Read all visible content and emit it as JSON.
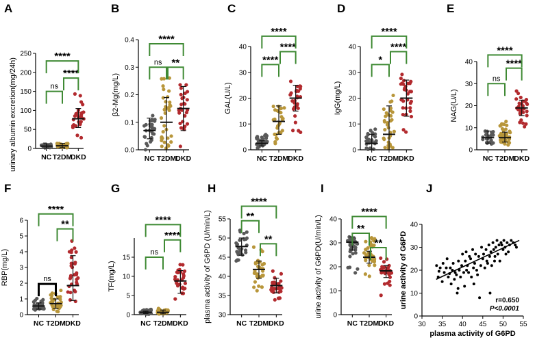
{
  "colors": {
    "NC": "#595959",
    "T2DM": "#b8963a",
    "DKD": "#b22a2e",
    "bracket": "#3f8a34",
    "bracket_alt": "#000000"
  },
  "chart_data": [
    {
      "panel": "A",
      "type": "scatter",
      "ylabel": "urinary albumin excretion(mg/24h)",
      "ylim": [
        0,
        250
      ],
      "yticks": [
        0,
        50,
        100,
        150,
        200,
        250
      ],
      "categories": [
        "NC",
        "T2DM",
        "DKD"
      ],
      "groups": [
        {
          "name": "NC",
          "mean": 6,
          "low": 1,
          "high": 12,
          "n": 28,
          "spread": [
            1,
            12
          ]
        },
        {
          "name": "T2DM",
          "mean": 7,
          "low": 2,
          "high": 13,
          "n": 30,
          "spread": [
            1,
            14
          ]
        },
        {
          "name": "DKD",
          "mean": 78,
          "low": 55,
          "high": 105,
          "n": 28,
          "spread": [
            25,
            150
          ]
        }
      ],
      "brackets": [
        {
          "from": 0,
          "to": 1,
          "label": "ns",
          "y": 150,
          "color": "bracket"
        },
        {
          "from": 1,
          "to": 2,
          "label": "****",
          "y": 185,
          "color": "bracket"
        },
        {
          "from": 0,
          "to": 2,
          "label": "****",
          "y": 230,
          "color": "bracket"
        }
      ]
    },
    {
      "panel": "B",
      "type": "scatter",
      "ylabel": "β2-Mg(mg/L)",
      "ylim": [
        0,
        0.4
      ],
      "yticks": [
        "0.0",
        "0.1",
        "0.2",
        "0.3",
        "0.4"
      ],
      "categories": [
        "NC",
        "T2DM",
        "DKD"
      ],
      "groups": [
        {
          "name": "NC",
          "mean": 0.07,
          "low": 0.04,
          "high": 0.115,
          "n": 30,
          "spread": [
            0.0,
            0.13
          ]
        },
        {
          "name": "T2DM",
          "mean": 0.1,
          "low": 0.0,
          "high": 0.19,
          "n": 34,
          "spread": [
            0.0,
            0.27
          ]
        },
        {
          "name": "DKD",
          "mean": 0.15,
          "low": 0.07,
          "high": 0.23,
          "n": 28,
          "spread": [
            0.0,
            0.29
          ]
        }
      ],
      "brackets": [
        {
          "from": 0,
          "to": 1,
          "label": "ns",
          "y": 0.3,
          "color": "bracket"
        },
        {
          "from": 1,
          "to": 2,
          "label": "**",
          "y": 0.3,
          "color": "bracket"
        },
        {
          "from": 0,
          "to": 2,
          "label": "****",
          "y": 0.385,
          "color": "bracket"
        }
      ]
    },
    {
      "panel": "C",
      "type": "scatter",
      "ylabel": "GAL(U/L)",
      "ylim": [
        0,
        40
      ],
      "yticks": [
        0,
        10,
        20,
        30,
        40
      ],
      "categories": [
        "NC",
        "T2DM",
        "DKD"
      ],
      "groups": [
        {
          "name": "NC",
          "mean": 2.5,
          "low": 1.5,
          "high": 3.5,
          "n": 34,
          "spread": [
            0.5,
            6
          ]
        },
        {
          "name": "T2DM",
          "mean": 11,
          "low": 6,
          "high": 17,
          "n": 30,
          "spread": [
            1,
            21
          ]
        },
        {
          "name": "DKD",
          "mean": 20,
          "low": 15,
          "high": 25,
          "n": 30,
          "spread": [
            6,
            31
          ]
        }
      ],
      "brackets": [
        {
          "from": 0,
          "to": 1,
          "label": "****",
          "y": 33,
          "color": "bracket"
        },
        {
          "from": 1,
          "to": 2,
          "label": "****",
          "y": 38,
          "color": "bracket"
        },
        {
          "from": 0,
          "to": 2,
          "label": "****",
          "y": 44,
          "color": "bracket"
        }
      ]
    },
    {
      "panel": "D",
      "type": "scatter",
      "ylabel": "IgG(mg/L)",
      "ylim": [
        0,
        40
      ],
      "yticks": [
        0,
        10,
        20,
        30,
        40
      ],
      "categories": [
        "NC",
        "T2DM",
        "DKD"
      ],
      "groups": [
        {
          "name": "NC",
          "mean": 2.5,
          "low": 0,
          "high": 6,
          "n": 30,
          "spread": [
            0,
            9
          ]
        },
        {
          "name": "T2DM",
          "mean": 6,
          "low": 0,
          "high": 17,
          "n": 32,
          "spread": [
            0,
            22
          ]
        },
        {
          "name": "DKD",
          "mean": 20,
          "low": 13,
          "high": 27,
          "n": 30,
          "spread": [
            5,
            33
          ]
        }
      ],
      "brackets": [
        {
          "from": 0,
          "to": 1,
          "label": "*",
          "y": 33,
          "color": "bracket"
        },
        {
          "from": 1,
          "to": 2,
          "label": "****",
          "y": 38,
          "color": "bracket"
        },
        {
          "from": 0,
          "to": 2,
          "label": "****",
          "y": 44,
          "color": "bracket"
        }
      ]
    },
    {
      "panel": "E",
      "type": "scatter",
      "ylabel": "NAG(U/L)",
      "ylim": [
        0,
        40
      ],
      "yticks": [
        0,
        10,
        20,
        30,
        40
      ],
      "categories": [
        "NC",
        "T2DM",
        "DKD"
      ],
      "groups": [
        {
          "name": "NC",
          "mean": 5.5,
          "low": 3,
          "high": 8.5,
          "n": 26,
          "spread": [
            1.5,
            12
          ]
        },
        {
          "name": "T2DM",
          "mean": 5.5,
          "low": 3.5,
          "high": 8,
          "n": 36,
          "spread": [
            1,
            13
          ]
        },
        {
          "name": "DKD",
          "mean": 19,
          "low": 15.5,
          "high": 22.5,
          "n": 30,
          "spread": [
            10,
            28
          ]
        }
      ],
      "brackets": [
        {
          "from": 0,
          "to": 1,
          "label": "ns",
          "y": 30,
          "color": "bracket"
        },
        {
          "from": 1,
          "to": 2,
          "label": "****",
          "y": 37,
          "color": "bracket"
        },
        {
          "from": 0,
          "to": 2,
          "label": "****",
          "y": 43,
          "color": "bracket"
        }
      ]
    },
    {
      "panel": "F",
      "type": "scatter",
      "ylabel": "RBP(mg/L)",
      "ylim": [
        0,
        6
      ],
      "yticks": [
        0,
        1,
        2,
        3,
        4,
        5,
        6
      ],
      "categories": [
        "NC",
        "T2DM",
        "DKD"
      ],
      "groups": [
        {
          "name": "NC",
          "mean": 0.55,
          "low": 0.35,
          "high": 0.75,
          "n": 32,
          "spread": [
            0.1,
            1.1
          ]
        },
        {
          "name": "T2DM",
          "mean": 0.7,
          "low": 0.4,
          "high": 1.0,
          "n": 30,
          "spread": [
            0.1,
            1.6
          ]
        },
        {
          "name": "DKD",
          "mean": 1.85,
          "low": 0.9,
          "high": 3.75,
          "n": 30,
          "spread": [
            0.1,
            5.0
          ]
        }
      ],
      "brackets": [
        {
          "from": 0,
          "to": 1,
          "label": "ns",
          "y": 1.95,
          "color": "bracket_alt"
        },
        {
          "from": 1,
          "to": 2,
          "label": "**",
          "y": 5.45,
          "color": "bracket"
        },
        {
          "from": 0,
          "to": 2,
          "label": "****",
          "y": 6.4,
          "color": "bracket"
        }
      ]
    },
    {
      "panel": "G",
      "type": "scatter",
      "ylabel": "TF(mg/L)",
      "ylim": [
        0,
        20
      ],
      "yticks": [
        0,
        5,
        10,
        15
      ],
      "categories": [
        "NC",
        "T2DM",
        "DKD"
      ],
      "groups": [
        {
          "name": "NC",
          "mean": 0.6,
          "low": 0.3,
          "high": 0.9,
          "n": 30,
          "spread": [
            0.1,
            1.4
          ]
        },
        {
          "name": "T2DM",
          "mean": 0.6,
          "low": 0.2,
          "high": 1.2,
          "n": 30,
          "spread": [
            0.1,
            1.8
          ]
        },
        {
          "name": "DKD",
          "mean": 8.8,
          "low": 5.6,
          "high": 11.5,
          "n": 28,
          "spread": [
            2,
            14
          ]
        }
      ],
      "brackets": [
        {
          "from": 0,
          "to": 1,
          "label": "ns",
          "y": 15,
          "color": "bracket"
        },
        {
          "from": 1,
          "to": 2,
          "label": "****",
          "y": 19.5,
          "color": "bracket"
        },
        {
          "from": 0,
          "to": 2,
          "label": "****",
          "y": 23.5,
          "color": "bracket"
        }
      ]
    },
    {
      "panel": "H",
      "type": "scatter",
      "ylabel": "plasma activity of G6PD  (U/min/L)",
      "ylim": [
        30,
        55
      ],
      "yticks": [
        30,
        35,
        40,
        45,
        50,
        55
      ],
      "categories": [
        "NC",
        "T2DM",
        "DKD"
      ],
      "groups": [
        {
          "name": "NC",
          "mean": 47.8,
          "low": 45.5,
          "high": 50,
          "n": 30,
          "spread": [
            43.5,
            53.5
          ]
        },
        {
          "name": "T2DM",
          "mean": 41.8,
          "low": 39.5,
          "high": 44,
          "n": 32,
          "spread": [
            36,
            48
          ]
        },
        {
          "name": "DKD",
          "mean": 37.6,
          "low": 35.7,
          "high": 39.5,
          "n": 30,
          "spread": [
            33,
            41.5
          ]
        }
      ],
      "brackets": [
        {
          "from": 0,
          "to": 1,
          "label": "**",
          "y": 54.5,
          "color": "bracket"
        },
        {
          "from": 1,
          "to": 2,
          "label": "**",
          "y": 48.5,
          "color": "bracket"
        },
        {
          "from": 0,
          "to": 2,
          "label": "****",
          "y": 58.3,
          "color": "bracket"
        }
      ]
    },
    {
      "panel": "I",
      "type": "scatter",
      "ylabel": "urine activity of G6PD(U/min/L)",
      "ylim": [
        0,
        40
      ],
      "yticks": [
        0,
        10,
        20,
        30,
        40
      ],
      "categories": [
        "NC",
        "T2DM",
        "DKD"
      ],
      "groups": [
        {
          "name": "NC",
          "mean": 30.3,
          "low": 27,
          "high": 32.5,
          "n": 34,
          "spread": [
            16,
            34
          ]
        },
        {
          "name": "T2DM",
          "mean": 24,
          "low": 21.5,
          "high": 26.5,
          "n": 34,
          "spread": [
            15,
            33
          ]
        },
        {
          "name": "DKD",
          "mean": 18.3,
          "low": 15.5,
          "high": 20.5,
          "n": 32,
          "spread": [
            8,
            25
          ]
        }
      ],
      "brackets": [
        {
          "from": 0,
          "to": 1,
          "label": "**",
          "y": 34,
          "color": "bracket"
        },
        {
          "from": 1,
          "to": 2,
          "label": "**",
          "y": 28,
          "color": "bracket"
        },
        {
          "from": 0,
          "to": 2,
          "label": "****",
          "y": 41,
          "color": "bracket"
        }
      ]
    },
    {
      "panel": "J",
      "type": "scatter",
      "xlabel": "plasma activity of G6PD",
      "ylabel": "urine activity of G6PD",
      "xlim": [
        30,
        55
      ],
      "ylim": [
        0,
        40
      ],
      "xticks": [
        30,
        35,
        40,
        45,
        50,
        55
      ],
      "yticks": [
        0,
        10,
        20,
        30,
        40
      ],
      "regression": {
        "x": [
          33.5,
          54
        ],
        "y": [
          16,
          33
        ]
      },
      "r_label": "r=0.650",
      "p_label": "P<0.0001",
      "points": [
        [
          33.6,
          22
        ],
        [
          34,
          17
        ],
        [
          34.2,
          19.5
        ],
        [
          34.5,
          21
        ],
        [
          35,
          15
        ],
        [
          35.2,
          23
        ],
        [
          35.5,
          19
        ],
        [
          36,
          21
        ],
        [
          36.2,
          25
        ],
        [
          36.5,
          17
        ],
        [
          36.8,
          18.5
        ],
        [
          37,
          21
        ],
        [
          37.2,
          14
        ],
        [
          37.5,
          20
        ],
        [
          37.7,
          23
        ],
        [
          38,
          16
        ],
        [
          38.2,
          19
        ],
        [
          38.5,
          18
        ],
        [
          38.7,
          10
        ],
        [
          39,
          24
        ],
        [
          39.2,
          20
        ],
        [
          39.5,
          17
        ],
        [
          39.8,
          22
        ],
        [
          40,
          27
        ],
        [
          40.3,
          19
        ],
        [
          40.5,
          13
        ],
        [
          40.7,
          24
        ],
        [
          41,
          20
        ],
        [
          41.2,
          22
        ],
        [
          41.5,
          19
        ],
        [
          41.7,
          26
        ],
        [
          42,
          25
        ],
        [
          42.2,
          17
        ],
        [
          42.5,
          29
        ],
        [
          42.7,
          21
        ],
        [
          43,
          23
        ],
        [
          43.2,
          27
        ],
        [
          43.5,
          20
        ],
        [
          43.7,
          18
        ],
        [
          44,
          26
        ],
        [
          44.2,
          8
        ],
        [
          44.5,
          22
        ],
        [
          44.7,
          30
        ],
        [
          45,
          25
        ],
        [
          45.2,
          27
        ],
        [
          45.5,
          21
        ],
        [
          45.8,
          29
        ],
        [
          46,
          24
        ],
        [
          46.2,
          23
        ],
        [
          46.5,
          31
        ],
        [
          46.7,
          26
        ],
        [
          47,
          28
        ],
        [
          47.2,
          22
        ],
        [
          47.5,
          32
        ],
        [
          47.7,
          29
        ],
        [
          48,
          26
        ],
        [
          48.2,
          30
        ],
        [
          48.5,
          33
        ],
        [
          48.7,
          27
        ],
        [
          49,
          31
        ],
        [
          49.2,
          24
        ],
        [
          49.5,
          32
        ],
        [
          49.7,
          31
        ],
        [
          50,
          29
        ],
        [
          50.2,
          33
        ],
        [
          50.5,
          30
        ],
        [
          50.7,
          27
        ],
        [
          51,
          32
        ],
        [
          51.3,
          28
        ],
        [
          51.6,
          31
        ],
        [
          52,
          33
        ],
        [
          52.5,
          32
        ],
        [
          53,
          31
        ],
        [
          53.3,
          30
        ],
        [
          46.8,
          10
        ],
        [
          42.8,
          14
        ],
        [
          38.9,
          12
        ],
        [
          40.9,
          28
        ],
        [
          47.9,
          24
        ]
      ]
    }
  ]
}
